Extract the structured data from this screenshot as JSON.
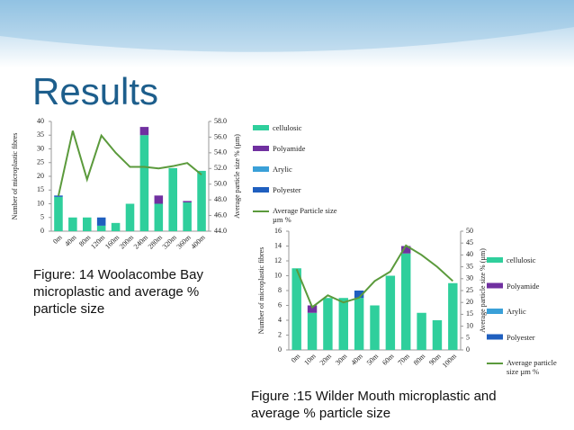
{
  "title": "Results",
  "chart_data": [
    {
      "type": "bar",
      "caption": "Figure: 14 Woolacombe Bay microplastic and average % particle size",
      "ylabel": "Number of microplastic fibres",
      "y2label": "Average particle size % (µm)",
      "categories": [
        "0m",
        "40m",
        "80m",
        "120m",
        "160m",
        "200m",
        "240m",
        "280m",
        "320m",
        "360m",
        "400m"
      ],
      "stacked": true,
      "series": [
        {
          "name": "cellulosic",
          "color": "#2fcf9c",
          "values": [
            12.5,
            5,
            5,
            2,
            3,
            10,
            35,
            10,
            23,
            10.5,
            22
          ]
        },
        {
          "name": "Polyamide",
          "color": "#7030a0",
          "values": [
            0,
            0,
            0,
            0,
            0,
            0,
            3,
            3,
            0,
            0.5,
            0
          ]
        },
        {
          "name": "Arylic",
          "color": "#3aa0d8",
          "values": [
            0,
            0,
            0,
            0,
            0,
            0,
            0,
            0,
            0,
            0,
            0
          ]
        },
        {
          "name": "Polyester",
          "color": "#1f5fbf",
          "values": [
            0.5,
            0,
            0,
            3,
            0,
            0,
            0,
            0,
            0,
            0,
            0
          ]
        },
        {
          "name": "Average Particle size  µm %",
          "color": "#5b9a3c",
          "type": "line",
          "axis": "y2",
          "values": [
            48.5,
            56.8,
            50.6,
            56.2,
            54,
            52.2,
            52.2,
            52,
            52.3,
            52.7,
            51.2
          ]
        }
      ],
      "ylim": [
        0,
        40
      ],
      "yticks": [
        0,
        5,
        10,
        15,
        20,
        25,
        30,
        35,
        40
      ],
      "y2lim": [
        44,
        58
      ],
      "y2ticks": [
        {
          "value": 44,
          "label": "44.0"
        },
        {
          "value": 46,
          "label": "46.0"
        },
        {
          "value": 48,
          "label": "48.0"
        },
        {
          "value": 50,
          "label": "50.0"
        },
        {
          "value": 52,
          "label": "52.0"
        },
        {
          "value": 54,
          "label": "54.0"
        },
        {
          "value": 56,
          "label": "56.0"
        },
        {
          "value": 58,
          "label": "58.0"
        }
      ],
      "grid": false,
      "legend": "right"
    },
    {
      "type": "bar",
      "caption": "Figure :15  Wilder Mouth microplastic and average % particle size",
      "ylabel": "Number of microplastic fibres",
      "y2label": "Average particle size % (µm)",
      "categories": [
        "0m",
        "10m",
        "20m",
        "30m",
        "40m",
        "50m",
        "60m",
        "70m",
        "80m",
        "90m",
        "100m"
      ],
      "stacked": true,
      "series": [
        {
          "name": "cellulosic",
          "color": "#2fcf9c",
          "values": [
            11,
            5,
            7,
            7,
            7,
            6,
            10,
            13,
            5,
            4,
            9
          ]
        },
        {
          "name": "Polyamide",
          "color": "#7030a0",
          "values": [
            0,
            1,
            0,
            0,
            0,
            0,
            0,
            1,
            0,
            0,
            0
          ]
        },
        {
          "name": "Arylic",
          "color": "#3aa0d8",
          "values": [
            0,
            0,
            0,
            0,
            0,
            0,
            0,
            0,
            0,
            0,
            0
          ]
        },
        {
          "name": "Polyester",
          "color": "#1f5fbf",
          "values": [
            0,
            0,
            0,
            0,
            1,
            0,
            0,
            0,
            0,
            0,
            0
          ]
        },
        {
          "name": "Average particle size µm %",
          "color": "#5b9a3c",
          "type": "line",
          "axis": "y2",
          "values": [
            34,
            18,
            23,
            20,
            22,
            29,
            33,
            44,
            40,
            35,
            29
          ]
        }
      ],
      "ylim": [
        0,
        16
      ],
      "yticks": [
        0,
        2,
        4,
        6,
        8,
        10,
        12,
        14,
        16
      ],
      "y2lim": [
        0,
        50
      ],
      "y2ticks": [
        0,
        5,
        10,
        15,
        20,
        25,
        30,
        35,
        40,
        45,
        50
      ],
      "grid": false,
      "legend": "right"
    }
  ]
}
